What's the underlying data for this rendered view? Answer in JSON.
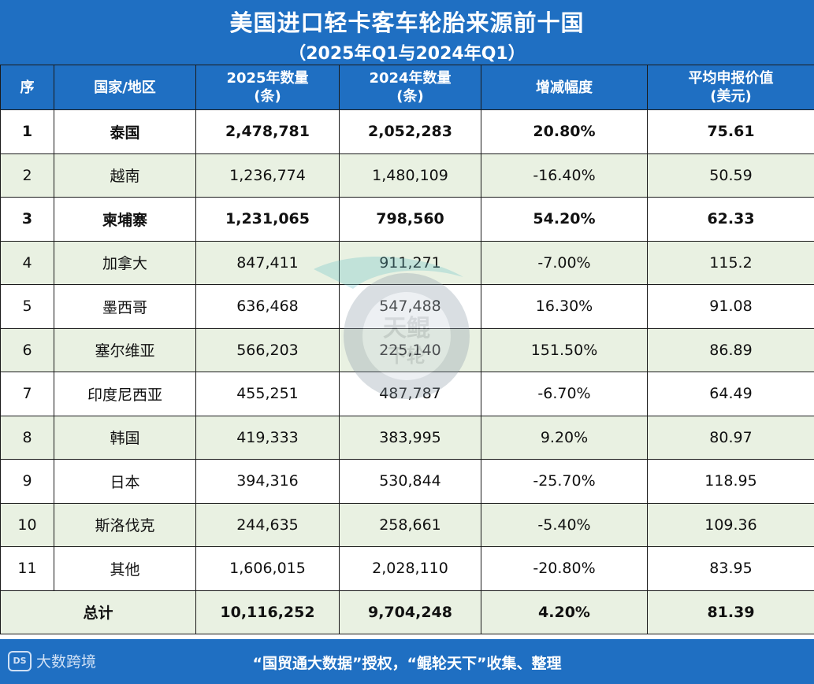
{
  "title": "美国进口轻卡客车轮胎来源前十国",
  "subtitle": "（2025年Q1与2024年Q1）",
  "headers": {
    "seq": "序",
    "country": "国家/地区",
    "q2025_line1": "2025年数量",
    "q2025_line2": "(条)",
    "q2024_line1": "2024年数量",
    "q2024_line2": "(条)",
    "change": "增减幅度",
    "price_line1": "平均申报价值",
    "price_line2": "(美元)"
  },
  "rows": [
    {
      "seq": "1",
      "country": "泰国",
      "q2025": "2,478,781",
      "q2024": "2,052,283",
      "change": "20.80%",
      "price": "75.61",
      "bold": true
    },
    {
      "seq": "2",
      "country": "越南",
      "q2025": "1,236,774",
      "q2024": "1,480,109",
      "change": "-16.40%",
      "price": "50.59",
      "bold": false
    },
    {
      "seq": "3",
      "country": "柬埔寨",
      "q2025": "1,231,065",
      "q2024": "798,560",
      "change": "54.20%",
      "price": "62.33",
      "bold": true
    },
    {
      "seq": "4",
      "country": "加拿大",
      "q2025": "847,411",
      "q2024": "911,271",
      "change": "-7.00%",
      "price": "115.2",
      "bold": false
    },
    {
      "seq": "5",
      "country": "墨西哥",
      "q2025": "636,468",
      "q2024": "547,488",
      "change": "16.30%",
      "price": "91.08",
      "bold": false
    },
    {
      "seq": "6",
      "country": "塞尔维亚",
      "q2025": "566,203",
      "q2024": "225,140",
      "change": "151.50%",
      "price": "86.89",
      "bold": false
    },
    {
      "seq": "7",
      "country": "印度尼西亚",
      "q2025": "455,251",
      "q2024": "487,787",
      "change": "-6.70%",
      "price": "64.49",
      "bold": false
    },
    {
      "seq": "8",
      "country": "韩国",
      "q2025": "419,333",
      "q2024": "383,995",
      "change": "9.20%",
      "price": "80.97",
      "bold": false
    },
    {
      "seq": "9",
      "country": "日本",
      "q2025": "394,316",
      "q2024": "530,844",
      "change": "-25.70%",
      "price": "118.95",
      "bold": false
    },
    {
      "seq": "10",
      "country": "斯洛伐克",
      "q2025": "244,635",
      "q2024": "258,661",
      "change": "-5.40%",
      "price": "109.36",
      "bold": false
    },
    {
      "seq": "11",
      "country": "其他",
      "q2025": "1,606,015",
      "q2024": "2,028,110",
      "change": "-20.80%",
      "price": "83.95",
      "bold": false
    }
  ],
  "total": {
    "label": "总计",
    "q2025": "10,116,252",
    "q2024": "9,704,248",
    "change": "4.20%",
    "price": "81.39"
  },
  "footer": {
    "text": "“国贸通大数据”授权，“鲲轮天下”收集、整理",
    "brand": "大数跨境",
    "brand_mark": "DS"
  },
  "watermark": {
    "text_top": "天鲲",
    "text_bottom": "下轮"
  },
  "colors": {
    "header_bg": "#1f6fc2",
    "row_alt_bg": "#e9f1e2",
    "row_bg": "#ffffff"
  },
  "chart_data": {
    "type": "table",
    "title": "美国进口轻卡客车轮胎来源前十国",
    "subtitle": "（2025年Q1与2024年Q1）",
    "columns": [
      "序",
      "国家/地区",
      "2025年数量(条)",
      "2024年数量(条)",
      "增减幅度",
      "平均申报价值(美元)"
    ],
    "rows": [
      [
        "1",
        "泰国",
        2478781,
        2052283,
        20.8,
        75.61
      ],
      [
        "2",
        "越南",
        1236774,
        1480109,
        -16.4,
        50.59
      ],
      [
        "3",
        "柬埔寨",
        1231065,
        798560,
        54.2,
        62.33
      ],
      [
        "4",
        "加拿大",
        847411,
        911271,
        -7.0,
        115.2
      ],
      [
        "5",
        "墨西哥",
        636468,
        547488,
        16.3,
        91.08
      ],
      [
        "6",
        "塞尔维亚",
        566203,
        225140,
        151.5,
        86.89
      ],
      [
        "7",
        "印度尼西亚",
        455251,
        487787,
        -6.7,
        64.49
      ],
      [
        "8",
        "韩国",
        419333,
        383995,
        9.2,
        80.97
      ],
      [
        "9",
        "日本",
        394316,
        530844,
        -25.7,
        118.95
      ],
      [
        "10",
        "斯洛伐克",
        244635,
        258661,
        -5.4,
        109.36
      ],
      [
        "11",
        "其他",
        1606015,
        2028110,
        -20.8,
        83.95
      ]
    ],
    "total": [
      "总计",
      10116252,
      9704248,
      4.2,
      81.39
    ]
  }
}
